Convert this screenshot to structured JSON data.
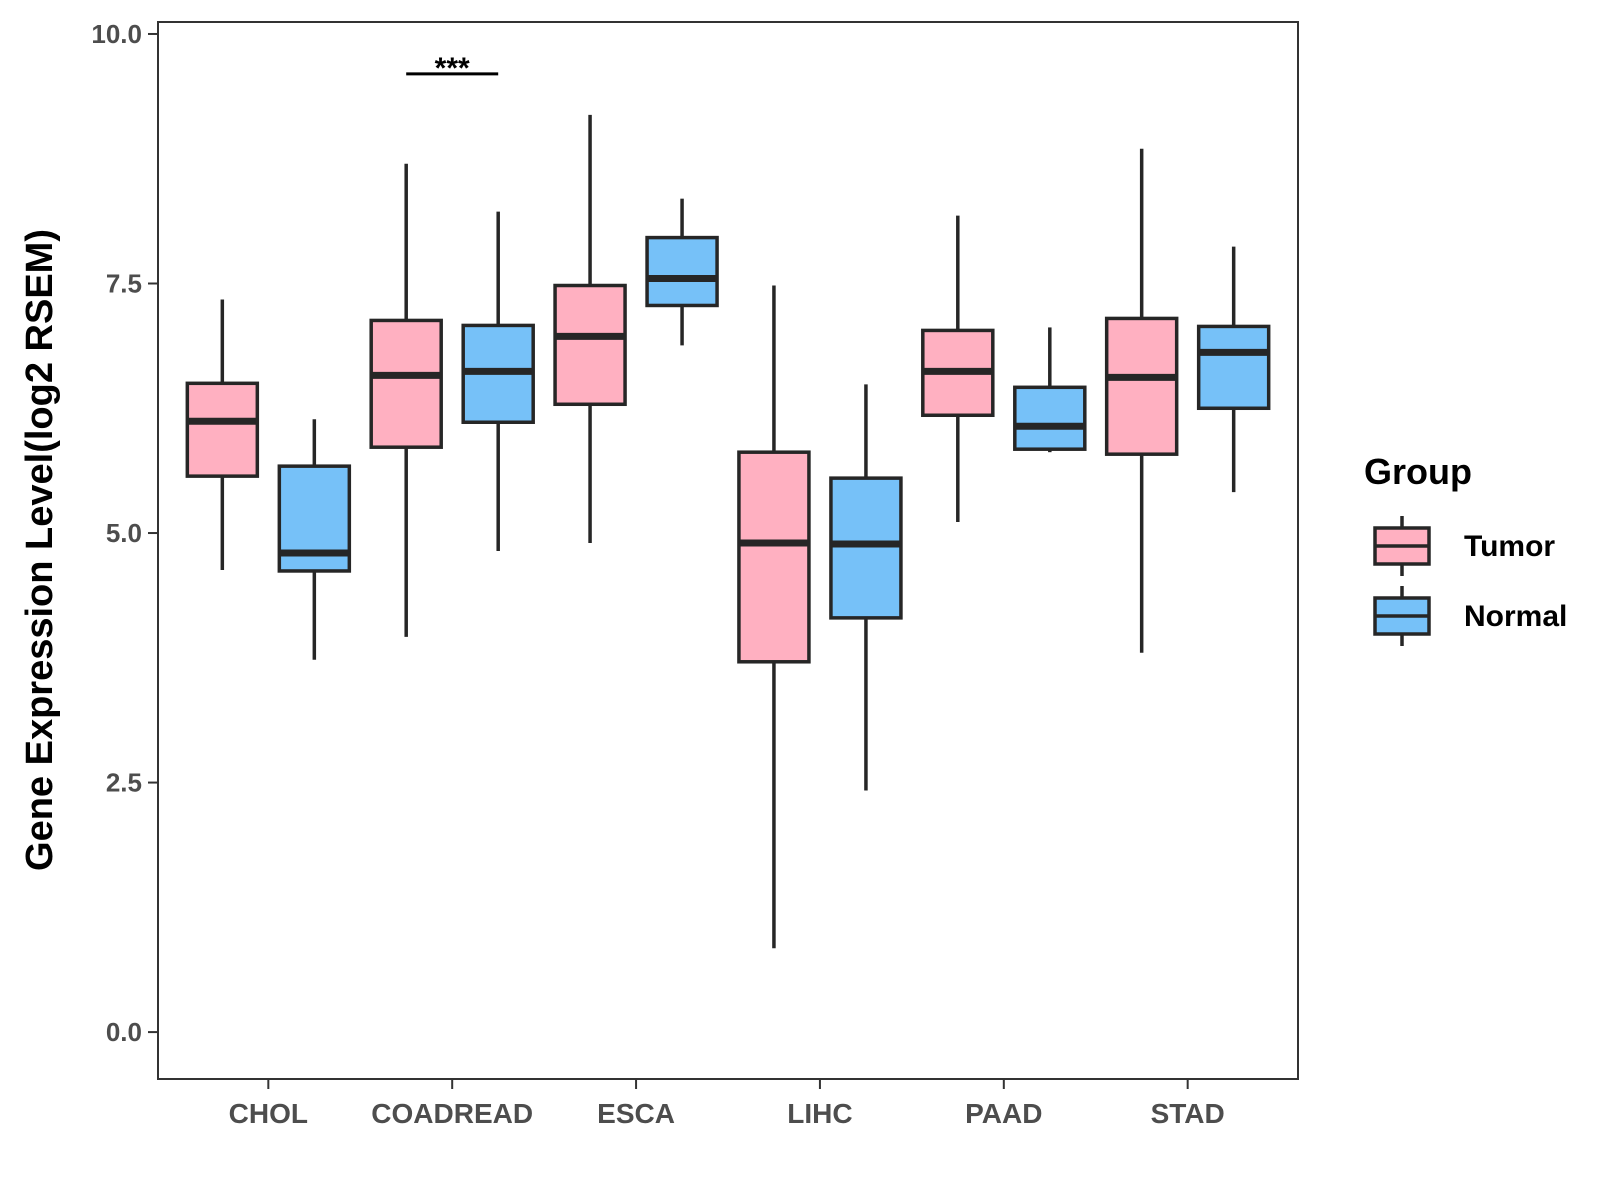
{
  "chart_data": {
    "type": "boxplot",
    "title": "",
    "xlabel": "",
    "ylabel": "Gene Expression Level(log2 RSEM)",
    "ylim": [
      -0.47,
      10.12
    ],
    "yticks": [
      0.0,
      2.5,
      5.0,
      7.5,
      10.0
    ],
    "ytick_labels": [
      "0.0",
      "2.5",
      "5.0",
      "7.5",
      "10.0"
    ],
    "categories": [
      "CHOL",
      "COADREAD",
      "ESCA",
      "LIHC",
      "PAAD",
      "STAD"
    ],
    "grid": false,
    "legend": {
      "title": "Group",
      "placement": "right"
    },
    "series": [
      {
        "name": "Tumor",
        "color": "#FFB0C1",
        "boxes": [
          {
            "whisker_low": 4.63,
            "q1": 5.57,
            "median": 6.12,
            "q3": 6.5,
            "whisker_high": 7.34
          },
          {
            "whisker_low": 3.96,
            "q1": 5.86,
            "median": 6.58,
            "q3": 7.13,
            "whisker_high": 8.7
          },
          {
            "whisker_low": 4.9,
            "q1": 6.29,
            "median": 6.97,
            "q3": 7.48,
            "whisker_high": 9.19
          },
          {
            "whisker_low": 0.84,
            "q1": 3.71,
            "median": 4.9,
            "q3": 5.81,
            "whisker_high": 7.48
          },
          {
            "whisker_low": 5.11,
            "q1": 6.18,
            "median": 6.62,
            "q3": 7.03,
            "whisker_high": 8.18
          },
          {
            "whisker_low": 3.8,
            "q1": 5.79,
            "median": 6.56,
            "q3": 7.15,
            "whisker_high": 8.85
          }
        ]
      },
      {
        "name": "Normal",
        "color": "#76C1F8",
        "boxes": [
          {
            "whisker_low": 3.73,
            "q1": 4.62,
            "median": 4.8,
            "q3": 5.67,
            "whisker_high": 6.14
          },
          {
            "whisker_low": 4.82,
            "q1": 6.11,
            "median": 6.62,
            "q3": 7.08,
            "whisker_high": 8.22
          },
          {
            "whisker_low": 6.88,
            "q1": 7.28,
            "median": 7.55,
            "q3": 7.96,
            "whisker_high": 8.35
          },
          {
            "whisker_low": 2.42,
            "q1": 4.15,
            "median": 4.89,
            "q3": 5.55,
            "whisker_high": 6.49
          },
          {
            "whisker_low": 5.81,
            "q1": 5.84,
            "median": 6.07,
            "q3": 6.46,
            "whisker_high": 7.06
          },
          {
            "whisker_low": 5.41,
            "q1": 6.25,
            "median": 6.81,
            "q3": 7.07,
            "whisker_high": 7.87
          }
        ]
      }
    ],
    "annotations": [
      {
        "text": "***",
        "category": "COADREAD",
        "y": 9.6
      }
    ]
  }
}
